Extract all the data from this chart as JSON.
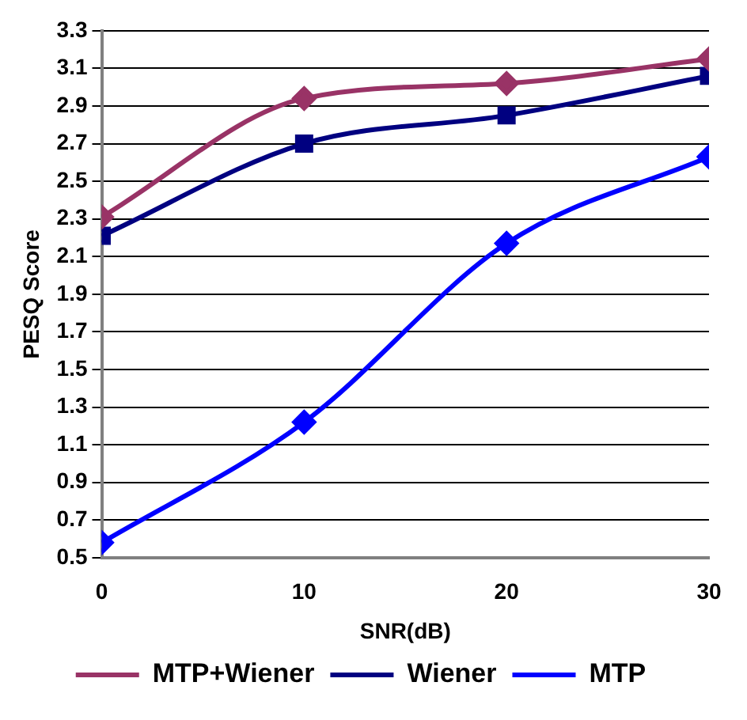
{
  "chart_data": {
    "type": "line",
    "xlabel": "SNR(dB)",
    "ylabel": "PESQ Score",
    "x": [
      0,
      10,
      20,
      30
    ],
    "series": [
      {
        "name": "MTP+Wiener",
        "color": "#993366",
        "marker": "diamond",
        "values": [
          2.31,
          2.94,
          3.02,
          3.15
        ]
      },
      {
        "name": "Wiener",
        "color": "#000080",
        "marker": "square",
        "values": [
          2.21,
          2.7,
          2.85,
          3.06
        ]
      },
      {
        "name": "MTP",
        "color": "#0000ff",
        "marker": "diamond",
        "values": [
          0.58,
          1.22,
          2.17,
          2.63
        ]
      }
    ],
    "xlim": [
      0,
      30
    ],
    "xticks": [
      0,
      10,
      20,
      30
    ],
    "ylim": [
      0.5,
      3.3
    ],
    "yticks": [
      0.5,
      0.7,
      0.9,
      1.1,
      1.3,
      1.5,
      1.7,
      1.9,
      2.1,
      2.3,
      2.5,
      2.7,
      2.9,
      3.1,
      3.3
    ],
    "grid": "y",
    "legend": "bottom"
  }
}
